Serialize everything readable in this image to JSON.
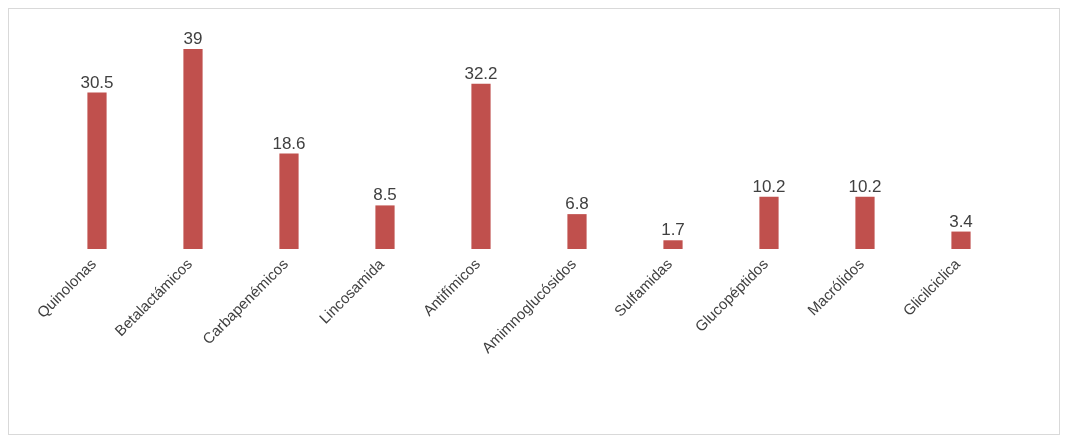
{
  "chart_data": {
    "type": "bar",
    "categories": [
      "Quinolonas",
      "Betalactámicos",
      "Carbapenémicos",
      "Lincosamida",
      "Antifímicos",
      "Amimnoglucósidos",
      "Sulfamidas",
      "Glucopéptidos",
      "Macrólidos",
      "Glicilciclica"
    ],
    "values": [
      30.5,
      39,
      18.6,
      8.5,
      32.2,
      6.8,
      1.7,
      10.2,
      10.2,
      3.4
    ],
    "color": "#c0504d",
    "data_labels": true,
    "grid": false,
    "legend": false
  }
}
